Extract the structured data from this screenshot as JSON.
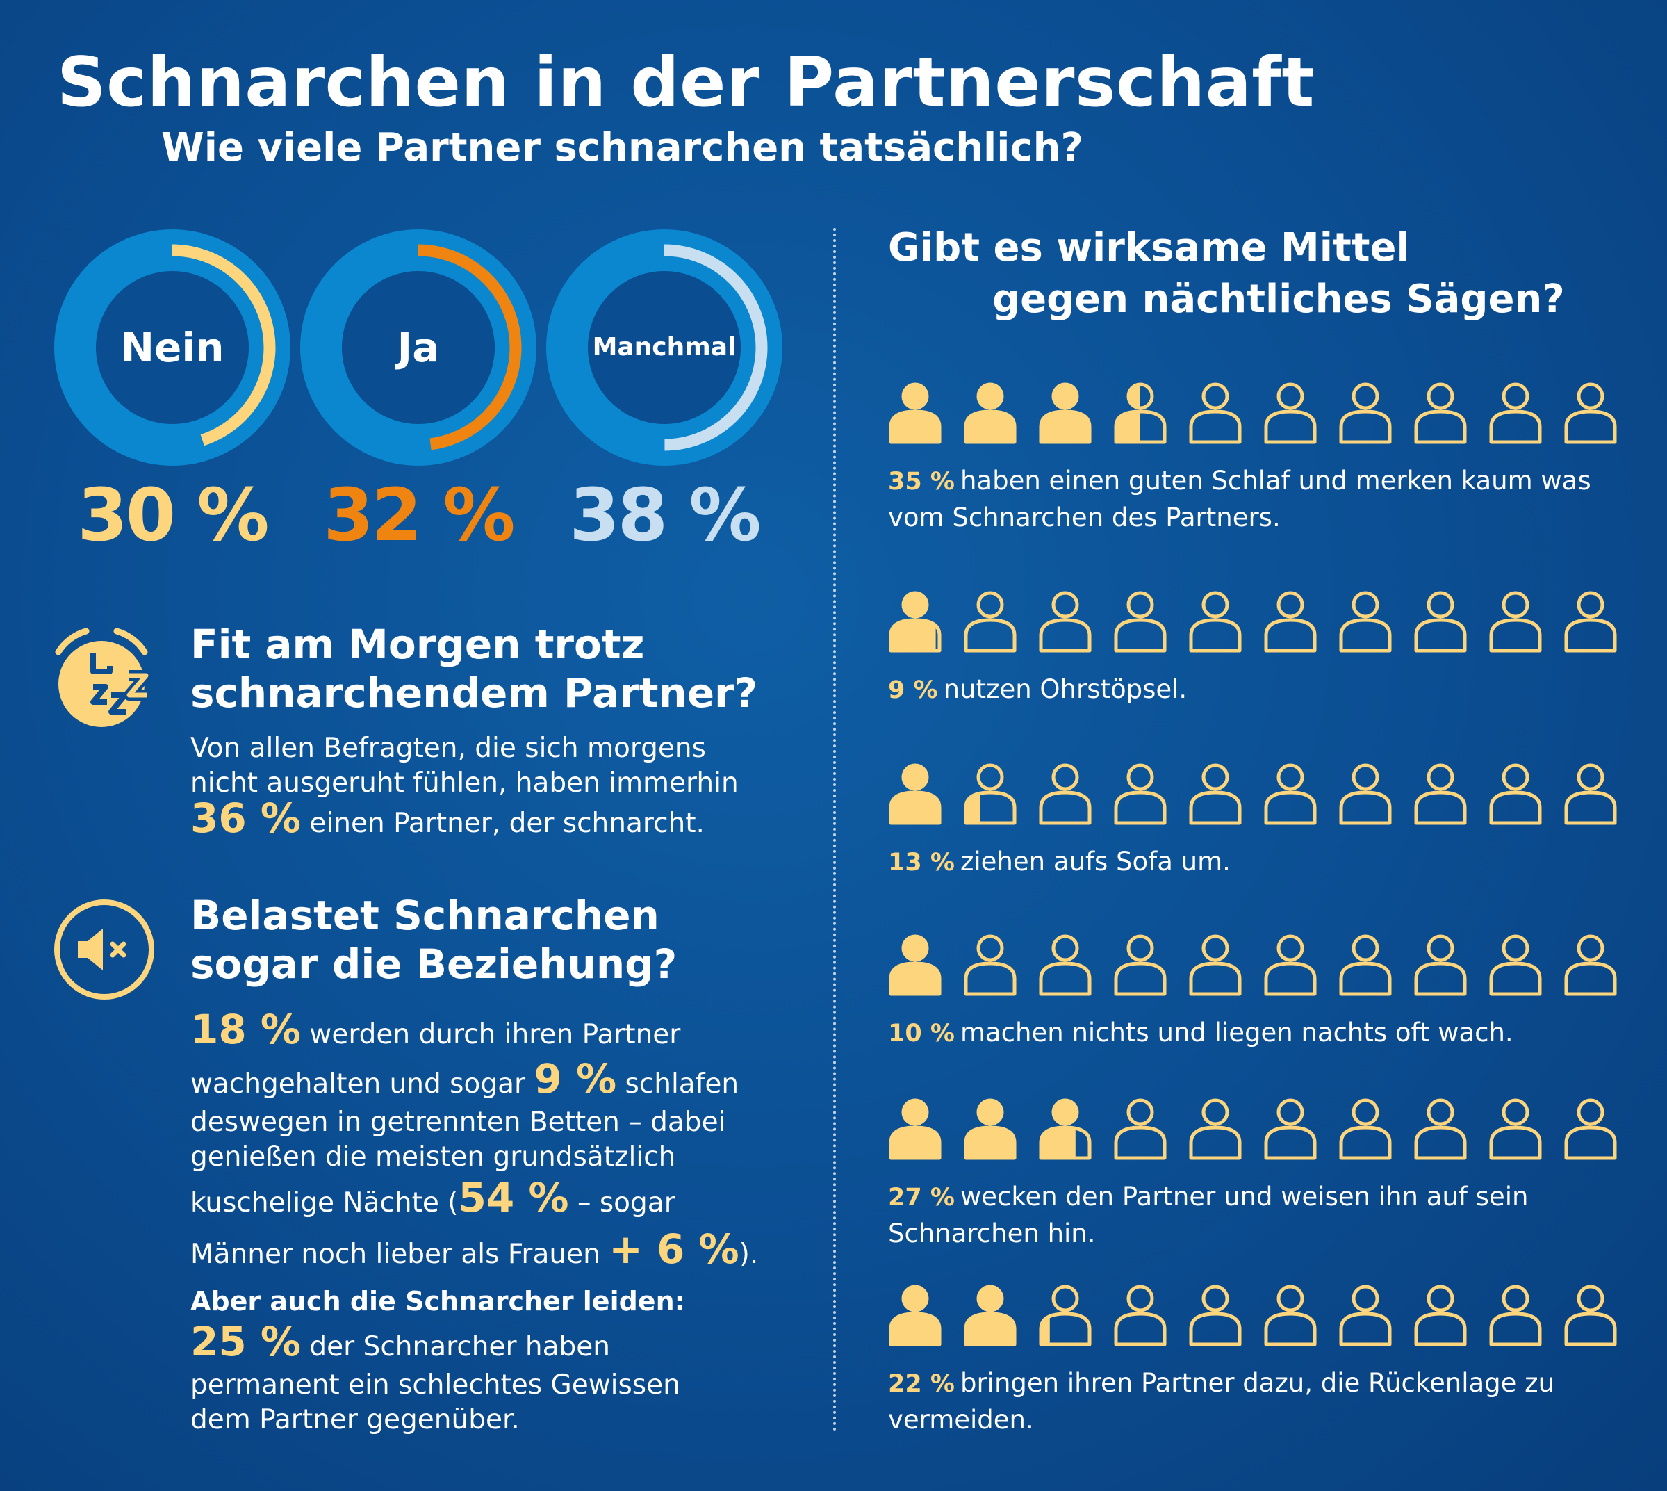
{
  "header": {
    "title": "Schnarchen in der Partnerschaft",
    "subtitle": "Wie viele Partner schnarchen tatsächlich?"
  },
  "colors": {
    "background": "#0b4d91",
    "yellow": "#fdd57d",
    "orange": "#ef8510",
    "light_blue": "#c7dff0",
    "donut_ring": "#0a87cf"
  },
  "chart_data": [
    {
      "type": "donut",
      "categories": [
        "Nein",
        "Ja",
        "Manchmal"
      ],
      "values": [
        30,
        32,
        38
      ],
      "value_labels": [
        "30 %",
        "32 %",
        "38 %"
      ],
      "colors": [
        "#fdd57d",
        "#ef8510",
        "#c7dff0"
      ],
      "unit": "%"
    },
    {
      "type": "pictogram",
      "icons_per_row": 10,
      "value_per_icon": 10,
      "rows": [
        {
          "label": "35 %",
          "text": "haben einen guten Schlaf und merken kaum was vom Schnarchen des Partners.",
          "lines": [
            "haben einen guten Schlaf und merken kaum was",
            "vom Schnarchen des Partners."
          ],
          "value": 35
        },
        {
          "label": "9 %",
          "text": "nutzen Ohrstöpsel.",
          "lines": [
            "nutzen Ohrstöpsel."
          ],
          "value": 9
        },
        {
          "label": "13 %",
          "text": "ziehen aufs Sofa um.",
          "lines": [
            "ziehen aufs Sofa um."
          ],
          "value": 13
        },
        {
          "label": "10 %",
          "text": "machen nichts und liegen nachts oft wach.",
          "lines": [
            "machen nichts und liegen nachts oft wach."
          ],
          "value": 10
        },
        {
          "label": "27 %",
          "text": "wecken den Partner und weisen ihn auf sein Schnarchen hin.",
          "lines": [
            "wecken den Partner und weisen ihn auf sein",
            "Schnarchen hin."
          ],
          "value": 27
        },
        {
          "label": "22 %",
          "text": "bringen ihren Partner dazu, die Rückenlage zu vermeiden.",
          "lines": [
            "bringen ihren Partner dazu, die Rückenlage zu",
            "vermeiden."
          ],
          "value": 22
        }
      ]
    }
  ],
  "morning": {
    "icon": "alarm-clock-zzz-icon",
    "title_line1": "Fit am Morgen trotz",
    "title_line2": "schnarchendem Partner?",
    "line1": "Von allen Befragten, die sich morgens",
    "line2": "nicht ausgeruht fühlen, haben immerhin",
    "pct": "36 %",
    "line3_rest": " einen Partner, der schnarcht."
  },
  "relationship": {
    "icon": "speaker-muted-icon",
    "title_line1": "Belastet Schnarchen",
    "title_line2": "sogar die Beziehung?",
    "pct_awake": "18 %",
    "t1": " werden durch ihren Partner",
    "t2": "wachgehalten und sogar ",
    "pct_beds": "9 %",
    "t3": " schlafen",
    "t4": "deswegen in getrennten Betten – dabei",
    "t5": "genießen die meisten grundsätzlich",
    "t6": "kuschelige Nächte (",
    "pct_cuddle": "54 %",
    "t7": " – sogar",
    "t8": "Männer noch lieber als Frauen ",
    "pct_men": "+ 6 %",
    "t9": ")."
  },
  "snorers": {
    "heading": "Aber auch die Schnarcher leiden:",
    "pct": "25 %",
    "t1": " der Schnarcher haben",
    "t2": "permanent ein schlechtes Gewissen",
    "t3": "dem Partner gegenüber."
  },
  "remedies": {
    "title_line1": "Gibt es wirksame Mittel",
    "title_line2": "gegen nächtliches Sägen?"
  }
}
